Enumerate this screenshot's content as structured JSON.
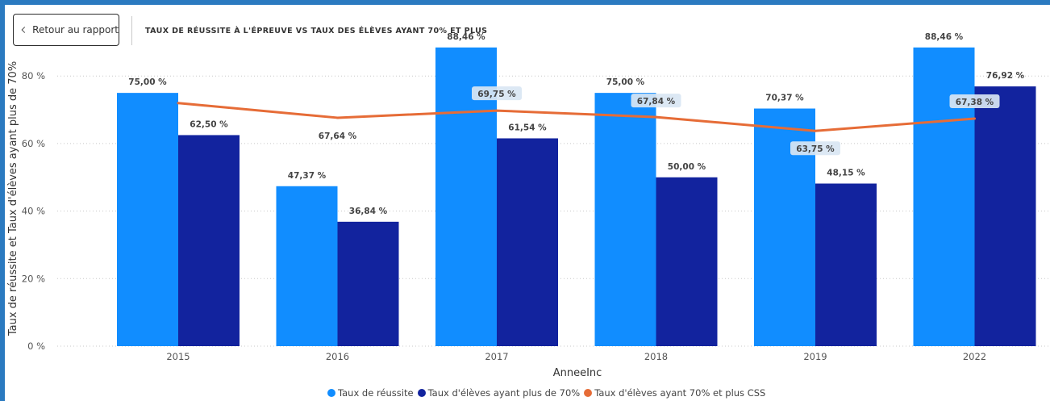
{
  "back_button": {
    "label": "Retour au rapport",
    "icon": "chevron-left-icon"
  },
  "page_title": "TAUX DE RÉUSSITE À L'ÉPREUVE VS TAUX DES ÉLÈVES AYANT 70% ET PLUS",
  "colors": {
    "frame": "#2b7ac0",
    "success": "#118dff",
    "students70": "#12239e",
    "css_line": "#e66c37"
  },
  "chart_data": {
    "type": "bar",
    "title": "",
    "xlabel": "AnneeInc",
    "ylabel": "Taux de réussite et Taux d'élèves ayant plus de 70%",
    "categories": [
      "2015",
      "2016",
      "2017",
      "2018",
      "2019",
      "2022"
    ],
    "ylim": [
      0,
      92
    ],
    "yticks": [
      0,
      20,
      40,
      60,
      80
    ],
    "ytick_labels": [
      "0 %",
      "20 %",
      "40 %",
      "60 %",
      "80 %"
    ],
    "grid": true,
    "legend_position": "bottom-center",
    "series": [
      {
        "name": "Taux de réussite",
        "type": "bar",
        "color": "#118dff",
        "values": [
          75.0,
          47.37,
          88.46,
          75.0,
          70.37,
          88.46
        ],
        "labels": [
          "75,00 %",
          "47,37 %",
          "88,46 %",
          "75,00 %",
          "70,37 %",
          "88,46 %"
        ]
      },
      {
        "name": "Taux d'élèves ayant plus de 70%",
        "type": "bar",
        "color": "#12239e",
        "values": [
          62.5,
          36.84,
          61.54,
          50.0,
          48.15,
          76.92
        ],
        "labels": [
          "62,50 %",
          "36,84 %",
          "61,54 %",
          "50,00 %",
          "48,15 %",
          "76,92 %"
        ]
      },
      {
        "name": "Taux d'élèves ayant 70% et plus CSS",
        "type": "line",
        "color": "#e66c37",
        "values": [
          72.0,
          67.64,
          69.75,
          67.84,
          63.75,
          67.38
        ],
        "labels": [
          "",
          "67,64 %",
          "69,75 %",
          "67,84 %",
          "63,75 %",
          "67,38 %"
        ]
      }
    ]
  }
}
